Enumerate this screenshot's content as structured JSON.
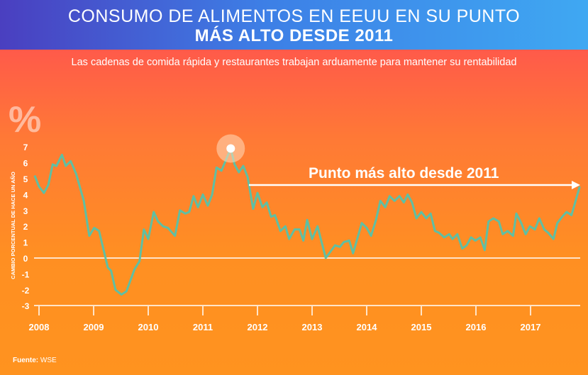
{
  "header": {
    "title_line1": "CONSUMO DE ALIMENTOS EN EEUU EN SU PUNTO",
    "title_line2": "MÁS ALTO DESDE 2011"
  },
  "subtitle": "Las cadenas de comida rápida y restaurantes trabajan arduamente para mantener su rentabilidad",
  "source_label": "Fuente:",
  "source_value": "WSE",
  "colors": {
    "line": "#5fbfa3",
    "header_start": "#4a3fc0",
    "header_end": "#3fa8f2"
  },
  "chart_data": {
    "type": "line",
    "title": "CONSUMO DE ALIMENTOS EN EEUU EN SU PUNTO MÁS ALTO DESDE 2011",
    "unit_symbol": "%",
    "ylabel": "CAMBIO PORCENTUAL DE HACE UN AÑO",
    "xlabel": "",
    "ylim": [
      -3,
      7
    ],
    "yticks": [
      "7",
      "6",
      "5",
      "4",
      "3",
      "2",
      "1",
      "0",
      "-1",
      "-2",
      "-3"
    ],
    "xticks": [
      "2008",
      "2009",
      "2010",
      "2011",
      "2012",
      "2013",
      "2014",
      "2015",
      "2016",
      "2017"
    ],
    "xlim": [
      2008,
      2017.95
    ],
    "annotation": "Punto más alto desde 2011",
    "peak": [
      2011.51,
      6.9
    ],
    "x": [
      2007.92,
      2008.0,
      2008.09,
      2008.17,
      2008.25,
      2008.32,
      2008.42,
      2008.49,
      2008.58,
      2008.68,
      2008.82,
      2008.92,
      2009.01,
      2009.1,
      2009.26,
      2009.32,
      2009.4,
      2009.51,
      2009.6,
      2009.75,
      2009.84,
      2009.92,
      2010.0,
      2010.1,
      2010.18,
      2010.27,
      2010.36,
      2010.49,
      2010.58,
      2010.68,
      2010.75,
      2010.83,
      2010.91,
      2011.0,
      2011.09,
      2011.17,
      2011.25,
      2011.34,
      2011.51,
      2011.58,
      2011.66,
      2011.74,
      2011.82,
      2011.92,
      2012.0,
      2012.09,
      2012.17,
      2012.25,
      2012.32,
      2012.42,
      2012.51,
      2012.58,
      2012.68,
      2012.77,
      2012.84,
      2012.91,
      2013.0,
      2013.1,
      2013.25,
      2013.42,
      2013.51,
      2013.58,
      2013.68,
      2013.75,
      2013.91,
      2014.0,
      2014.08,
      2014.17,
      2014.25,
      2014.34,
      2014.42,
      2014.51,
      2014.6,
      2014.68,
      2014.75,
      2014.83,
      2014.91,
      2015.0,
      2015.09,
      2015.17,
      2015.25,
      2015.32,
      2015.42,
      2015.51,
      2015.57,
      2015.66,
      2015.75,
      2015.83,
      2015.91,
      2015.99,
      2016.08,
      2016.16,
      2016.23,
      2016.32,
      2016.42,
      2016.49,
      2016.58,
      2016.68,
      2016.74,
      2016.83,
      2016.91,
      2016.99,
      2017.08,
      2017.16,
      2017.25,
      2017.32,
      2017.42,
      2017.49,
      2017.58,
      2017.66,
      2017.75,
      2017.9
    ],
    "y": [
      5.2,
      4.5,
      4.1,
      4.6,
      5.9,
      5.8,
      6.5,
      5.8,
      6.1,
      5.3,
      3.6,
      1.4,
      1.9,
      1.7,
      -0.6,
      -0.8,
      -2.0,
      -2.3,
      -2.1,
      -0.7,
      -0.2,
      1.8,
      1.2,
      2.9,
      2.3,
      2.0,
      1.9,
      1.4,
      3.0,
      2.8,
      2.9,
      3.9,
      3.2,
      4.0,
      3.3,
      4.0,
      5.7,
      5.5,
      6.9,
      5.9,
      5.4,
      5.8,
      5.1,
      3.1,
      4.1,
      3.2,
      3.5,
      2.6,
      2.7,
      1.7,
      2.0,
      1.2,
      1.8,
      1.8,
      1.1,
      2.4,
      1.2,
      2.0,
      0.0,
      0.8,
      0.7,
      1.0,
      1.1,
      0.3,
      2.2,
      1.9,
      1.4,
      2.4,
      3.6,
      3.2,
      3.9,
      3.6,
      3.9,
      3.5,
      4.0,
      3.5,
      2.5,
      2.9,
      2.5,
      2.8,
      1.7,
      1.6,
      1.3,
      1.5,
      1.2,
      1.5,
      0.6,
      0.8,
      1.3,
      1.1,
      1.3,
      0.5,
      2.3,
      2.5,
      2.3,
      1.5,
      1.7,
      1.4,
      2.8,
      2.2,
      1.5,
      2.0,
      1.8,
      2.5,
      1.8,
      1.6,
      1.2,
      2.2,
      2.6,
      2.9,
      2.7,
      4.5
    ]
  }
}
